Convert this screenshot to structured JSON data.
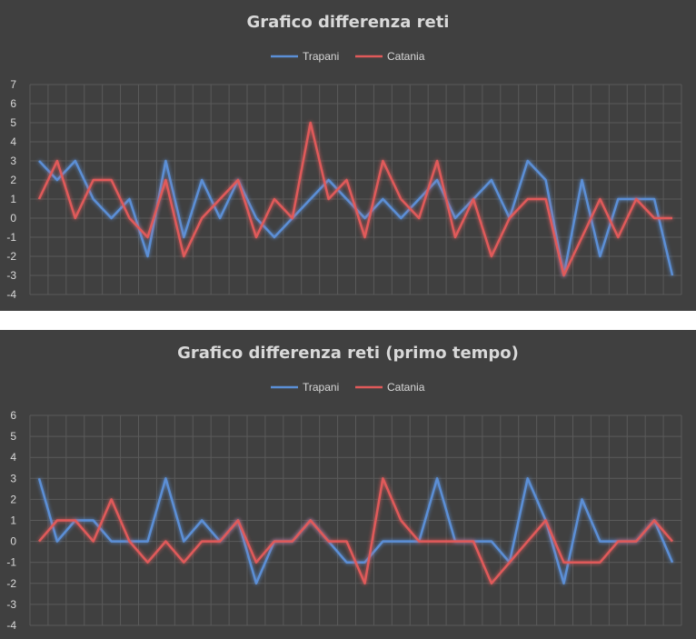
{
  "chart_data": [
    {
      "type": "line",
      "title": "Grafico differenza reti",
      "ylim": [
        -4,
        7
      ],
      "yticks": [
        "7",
        "6",
        "5",
        "4",
        "3",
        "2",
        "1",
        "0",
        "-1",
        "-2",
        "-3",
        "-4"
      ],
      "grid": true,
      "legend_position": "top",
      "series": [
        {
          "name": "Trapani",
          "color": "#5b8fd6",
          "values": [
            3,
            2,
            3,
            1,
            0,
            1,
            -2,
            3,
            -1,
            2,
            0,
            2,
            0,
            -1,
            0,
            1,
            2,
            1,
            0,
            1,
            0,
            1,
            2,
            0,
            1,
            2,
            0,
            3,
            2,
            -3,
            2,
            -2,
            1,
            1,
            1,
            -3
          ]
        },
        {
          "name": "Catania",
          "color": "#e05a5a",
          "values": [
            1,
            3,
            0,
            2,
            2,
            0,
            -1,
            2,
            -2,
            0,
            1,
            2,
            -1,
            1,
            0,
            5,
            1,
            2,
            -1,
            3,
            1,
            0,
            3,
            -1,
            1,
            -2,
            0,
            1,
            1,
            -3,
            -1,
            1,
            -1,
            1,
            0,
            0
          ]
        }
      ]
    },
    {
      "type": "line",
      "title": "Grafico differenza reti (primo tempo)",
      "ylim": [
        -4,
        6
      ],
      "yticks": [
        "6",
        "5",
        "4",
        "3",
        "2",
        "1",
        "0",
        "-1",
        "-2",
        "-3",
        "-4"
      ],
      "grid": true,
      "legend_position": "top",
      "series": [
        {
          "name": "Trapani",
          "color": "#5b8fd6",
          "values": [
            3,
            0,
            1,
            1,
            0,
            0,
            0,
            3,
            0,
            1,
            0,
            1,
            -2,
            0,
            0,
            1,
            0,
            -1,
            -1,
            0,
            0,
            0,
            3,
            0,
            0,
            0,
            -1,
            3,
            1,
            -2,
            2,
            0,
            0,
            0,
            1,
            -1
          ]
        },
        {
          "name": "Catania",
          "color": "#e05a5a",
          "values": [
            0,
            1,
            1,
            0,
            2,
            0,
            -1,
            0,
            -1,
            0,
            0,
            1,
            -1,
            0,
            0,
            1,
            0,
            0,
            -2,
            3,
            1,
            0,
            0,
            0,
            0,
            -2,
            -1,
            0,
            1,
            -1,
            -1,
            -1,
            0,
            0,
            1,
            0
          ]
        }
      ]
    }
  ]
}
